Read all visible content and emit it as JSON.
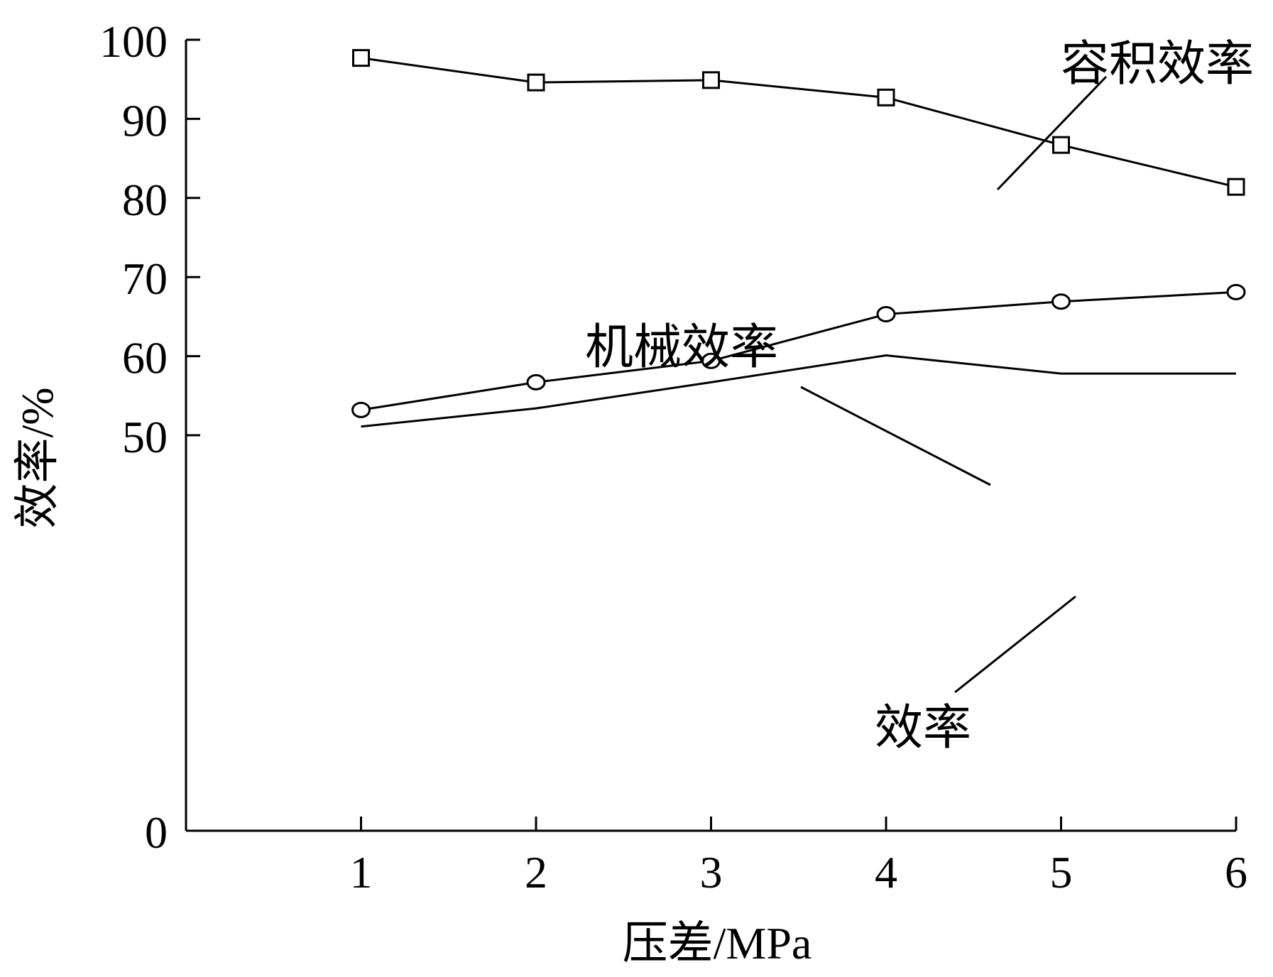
{
  "chart_data": {
    "type": "line",
    "xlabel": "压差/MPa",
    "ylabel": "效率/%",
    "xlim": [
      0,
      6
    ],
    "ylim": [
      0,
      100
    ],
    "x_ticks": [
      1,
      2,
      3,
      4,
      5,
      6
    ],
    "y_ticks": [
      0,
      50,
      60,
      70,
      80,
      90,
      100
    ],
    "grid": false,
    "legend": "none",
    "series": [
      {
        "name": "容积效率",
        "marker": "square",
        "x": [
          1,
          2,
          3,
          4,
          5,
          6
        ],
        "values": [
          97.7,
          94.6,
          94.9,
          92.7,
          86.7,
          81.4
        ]
      },
      {
        "name": "机械效率",
        "marker": "circle",
        "x": [
          1,
          2,
          3,
          4,
          5,
          6
        ],
        "values": [
          53.2,
          56.7,
          59.4,
          65.3,
          66.9,
          68.1
        ]
      },
      {
        "name": "效率",
        "marker": "none",
        "x": [
          1,
          2,
          3,
          4,
          5,
          6
        ],
        "values": [
          51.1,
          53.4,
          56.7,
          60.1,
          57.8,
          57.8
        ]
      }
    ]
  }
}
